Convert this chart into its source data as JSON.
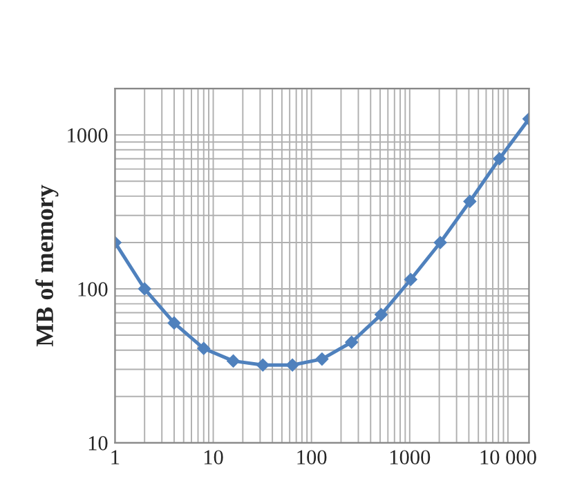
{
  "chart_data": {
    "type": "line",
    "ylabel": "MB of memory",
    "log": "xy",
    "grid": true,
    "marker": "diamond",
    "line_style": "solid",
    "x": [
      1,
      2,
      4,
      8,
      16,
      32,
      64,
      128,
      256,
      512,
      1024,
      2048,
      4096,
      8192,
      16384
    ],
    "series": [
      {
        "color": "#4f81bd",
        "values": [
          200,
          100,
          60,
          41,
          34,
          32,
          32,
          35,
          45,
          68,
          115,
          200,
          370,
          700,
          1270
        ]
      }
    ],
    "xlim": [
      1,
      16384
    ],
    "ylim": [
      10,
      2000
    ],
    "xticks": [
      1,
      10,
      100,
      1000,
      {
        "value": 10000,
        "label": "10 000"
      }
    ],
    "yticks": [
      10,
      100,
      1000
    ]
  }
}
